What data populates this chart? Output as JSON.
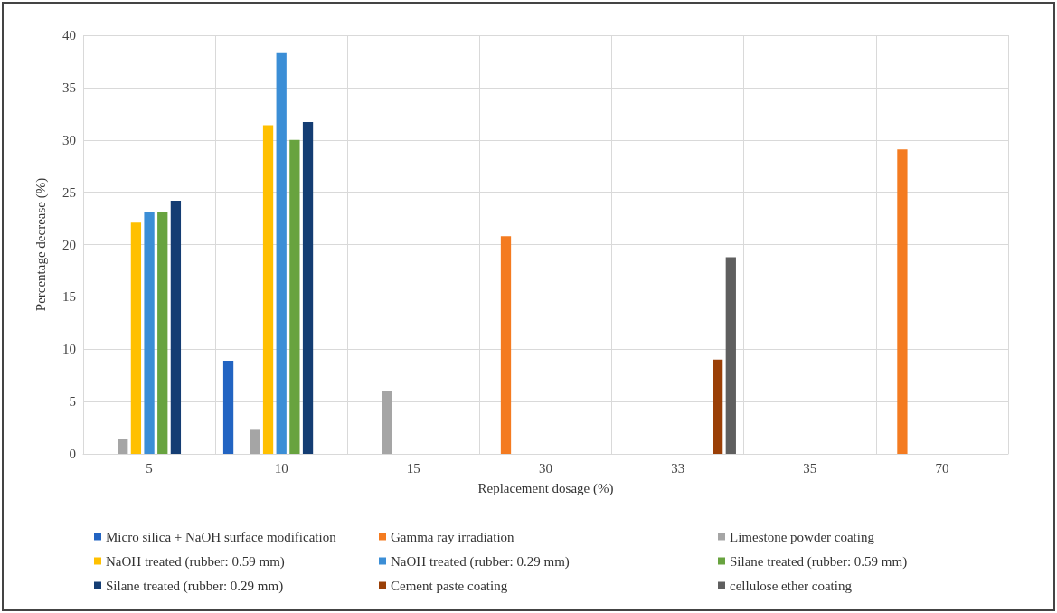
{
  "chart_data": {
    "type": "bar",
    "xlabel": "Replacement dosage (%)",
    "ylabel": "Percentage decrease (%)",
    "categories": [
      "5",
      "10",
      "15",
      "30",
      "33",
      "35",
      "70"
    ],
    "series": [
      {
        "name": "Micro silica + NaOH surface modification",
        "color": "#2264c2",
        "values": [
          null,
          8.9,
          null,
          null,
          null,
          null,
          null
        ]
      },
      {
        "name": "Gamma ray irradiation",
        "color": "#f47b20",
        "values": [
          null,
          null,
          null,
          20.8,
          null,
          null,
          29.1
        ]
      },
      {
        "name": "Limestone powder coating",
        "color": "#a5a5a5",
        "values": [
          1.4,
          2.3,
          6.0,
          null,
          null,
          null,
          null
        ]
      },
      {
        "name": "NaOH treated (rubber: 0.59 mm)",
        "color": "#ffc000",
        "values": [
          22.1,
          31.4,
          null,
          null,
          null,
          null,
          null
        ]
      },
      {
        "name": "NaOH treated (rubber: 0.29 mm)",
        "color": "#3b8ed6",
        "values": [
          23.1,
          38.3,
          null,
          null,
          null,
          null,
          null
        ]
      },
      {
        "name": "Silane treated (rubber: 0.59 mm)",
        "color": "#68a33f",
        "values": [
          23.1,
          30.0,
          null,
          null,
          null,
          null,
          null
        ]
      },
      {
        "name": "Silane treated (rubber: 0.29 mm)",
        "color": "#143d73",
        "values": [
          24.2,
          31.7,
          null,
          null,
          null,
          null,
          null
        ]
      },
      {
        "name": "Cement paste coating",
        "color": "#9a3f06",
        "values": [
          null,
          null,
          null,
          null,
          9.0,
          null,
          null
        ]
      },
      {
        "name": "cellulose ether coating",
        "color": "#5f5f5f",
        "values": [
          null,
          null,
          null,
          null,
          18.8,
          null,
          null
        ]
      }
    ],
    "ylim": [
      0,
      40
    ],
    "yticks": [
      0,
      5,
      10,
      15,
      20,
      25,
      30,
      35,
      40
    ],
    "grid": true,
    "legend": "bottom"
  }
}
